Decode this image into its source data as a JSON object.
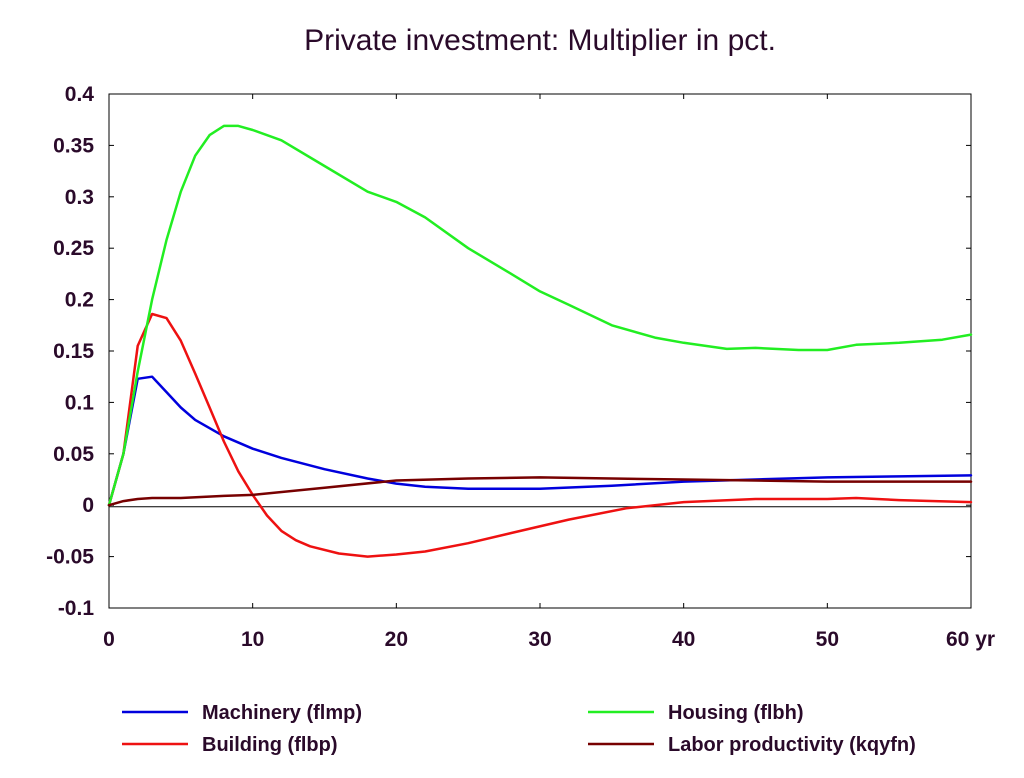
{
  "chart_data": {
    "type": "line",
    "title": "Private investment: Multiplier in pct.",
    "xlim": [
      0,
      60
    ],
    "ylim": [
      -0.1,
      0.4
    ],
    "x_ticks": [
      {
        "value": 0,
        "label": "0"
      },
      {
        "value": 10,
        "label": "10"
      },
      {
        "value": 20,
        "label": "20"
      },
      {
        "value": 30,
        "label": "30"
      },
      {
        "value": 40,
        "label": "40"
      },
      {
        "value": 50,
        "label": "50"
      },
      {
        "value": 60,
        "label": "60 yr"
      }
    ],
    "y_ticks": [
      {
        "value": 0.4,
        "label": "0.4"
      },
      {
        "value": 0.35,
        "label": "0.35"
      },
      {
        "value": 0.3,
        "label": "0.3"
      },
      {
        "value": 0.25,
        "label": "0.25"
      },
      {
        "value": 0.2,
        "label": "0.2"
      },
      {
        "value": 0.15,
        "label": "0.15"
      },
      {
        "value": 0.1,
        "label": "0.1"
      },
      {
        "value": 0.05,
        "label": "0.05"
      },
      {
        "value": 0,
        "label": "0"
      },
      {
        "value": -0.05,
        "label": "-0.05"
      },
      {
        "value": -0.1,
        "label": "-0.1"
      }
    ],
    "grid": false,
    "zero_line": true,
    "legend_position": "bottom",
    "series": [
      {
        "name": "Machinery (flmp)",
        "color": "#0000dd",
        "x": [
          0,
          1,
          2,
          3,
          4,
          5,
          6,
          8,
          10,
          12,
          15,
          18,
          20,
          22,
          25,
          30,
          35,
          40,
          45,
          50,
          55,
          60
        ],
        "values": [
          0,
          0.05,
          0.123,
          0.125,
          0.11,
          0.095,
          0.083,
          0.067,
          0.055,
          0.046,
          0.035,
          0.026,
          0.021,
          0.018,
          0.016,
          0.016,
          0.019,
          0.023,
          0.025,
          0.027,
          0.028,
          0.029
        ]
      },
      {
        "name": "Building (flbp)",
        "color": "#ee1111",
        "x": [
          0,
          1,
          2,
          3,
          4,
          5,
          6,
          7,
          8,
          9,
          10,
          11,
          12,
          13,
          14,
          16,
          18,
          20,
          22,
          25,
          28,
          32,
          36,
          40,
          45,
          50,
          52,
          55,
          60
        ],
        "values": [
          0,
          0.05,
          0.155,
          0.186,
          0.182,
          0.16,
          0.128,
          0.095,
          0.062,
          0.033,
          0.01,
          -0.01,
          -0.025,
          -0.034,
          -0.04,
          -0.047,
          -0.05,
          -0.048,
          -0.045,
          -0.037,
          -0.027,
          -0.014,
          -0.003,
          0.003,
          0.006,
          0.006,
          0.007,
          0.005,
          0.003
        ]
      },
      {
        "name": "Housing (flbh)",
        "color": "#22ee22",
        "x": [
          0,
          1,
          2,
          3,
          4,
          5,
          6,
          7,
          8,
          9,
          10,
          12,
          15,
          18,
          20,
          22,
          25,
          28,
          30,
          32,
          35,
          38,
          40,
          43,
          45,
          48,
          50,
          52,
          55,
          58,
          60
        ],
        "values": [
          0,
          0.05,
          0.13,
          0.2,
          0.258,
          0.305,
          0.34,
          0.36,
          0.369,
          0.369,
          0.365,
          0.355,
          0.33,
          0.305,
          0.295,
          0.28,
          0.25,
          0.225,
          0.208,
          0.195,
          0.175,
          0.163,
          0.158,
          0.152,
          0.153,
          0.151,
          0.151,
          0.156,
          0.158,
          0.161,
          0.166
        ]
      },
      {
        "name": "Labor productivity (kqyfn)",
        "color": "#770000",
        "x": [
          0,
          1,
          2,
          3,
          5,
          8,
          10,
          15,
          20,
          25,
          30,
          35,
          40,
          45,
          50,
          55,
          60
        ],
        "values": [
          0,
          0.004,
          0.006,
          0.007,
          0.007,
          0.009,
          0.01,
          0.017,
          0.024,
          0.026,
          0.027,
          0.026,
          0.025,
          0.024,
          0.023,
          0.023,
          0.023
        ]
      }
    ]
  }
}
